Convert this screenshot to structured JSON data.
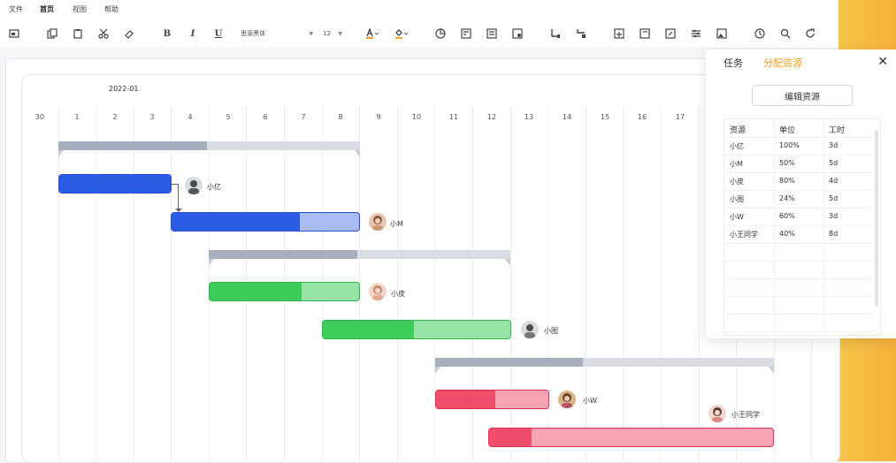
{
  "menu": [
    "文件",
    "首页",
    "视图",
    "帮助"
  ],
  "toolbar": {
    "font_family": "思源黑体",
    "font_size": "12",
    "bold": "B",
    "italic": "I",
    "underline": "U"
  },
  "timeline": {
    "month": "2022-01",
    "days": [
      "30",
      "1",
      "2",
      "3",
      "4",
      "5",
      "6",
      "7",
      "8",
      "9",
      "10",
      "11",
      "12",
      "13",
      "14",
      "15",
      "16",
      "17"
    ]
  },
  "tasks": {
    "resources": [
      "小亿",
      "小M",
      "小皮",
      "小图",
      "小W",
      "小王同学"
    ]
  },
  "panel": {
    "tabs": [
      "任务",
      "分配资源"
    ],
    "active_tab": "分配资源",
    "edit_button": "编辑资源",
    "columns": [
      "资源",
      "单位",
      "工时"
    ],
    "rows": [
      [
        "小亿",
        "100%",
        "3d"
      ],
      [
        "小M",
        "50%",
        "5d"
      ],
      [
        "小皮",
        "80%",
        "4d"
      ],
      [
        "小图",
        "24%",
        "5d"
      ],
      [
        "小W",
        "60%",
        "3d"
      ],
      [
        "小王同学",
        "40%",
        "8d"
      ]
    ]
  },
  "colors": {
    "blue_done": "#2b5ce6",
    "blue_todo": "#a9bdf5",
    "green_done": "#3dcc59",
    "green_todo": "#97e3a5",
    "red_done": "#ef4d6a",
    "red_todo": "#f7a3b4",
    "accent": "#f0a020"
  }
}
